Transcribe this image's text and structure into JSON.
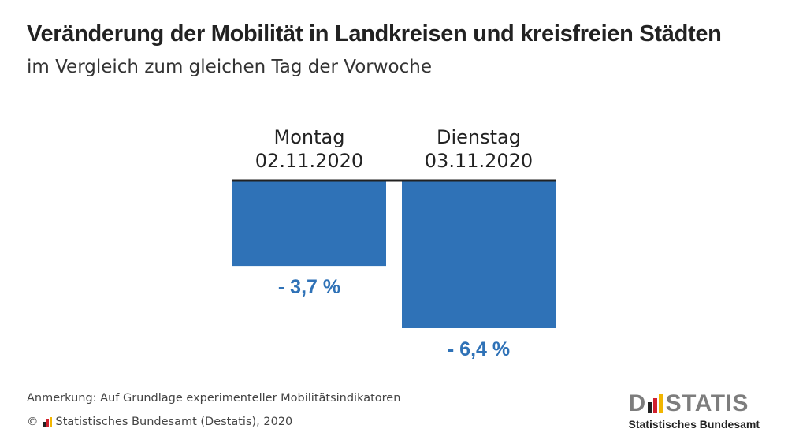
{
  "header": {
    "title": "Veränderung der Mobilität in Landkreisen und kreisfreien Städten",
    "subtitle": "im Vergleich zum gleichen Tag der Vorwoche"
  },
  "chart_data": {
    "type": "bar",
    "categories": [
      {
        "day": "Montag",
        "date": "02.11.2020"
      },
      {
        "day": "Dienstag",
        "date": "03.11.2020"
      }
    ],
    "values": [
      -3.7,
      -6.4
    ],
    "value_labels": [
      "- 3,7 %",
      "- 6,4 %"
    ],
    "title": "Veränderung der Mobilität in Landkreisen und kreisfreien Städten",
    "subtitle": "im Vergleich zum gleichen Tag der Vorwoche",
    "xlabel": "",
    "ylabel": "",
    "ylim": [
      -6.4,
      0
    ],
    "grid": false,
    "colors": {
      "bar": "#2f72b7",
      "label": "#2f72b7",
      "baseline": "#222222"
    }
  },
  "footer": {
    "note": "Anmerkung: Auf Grundlage experimenteller Mobilitätsindikatoren",
    "copyright_symbol": "©",
    "copyright_text": "Statistisches Bundesamt (Destatis), 2020"
  },
  "logo": {
    "word_left": "D",
    "word_right": "STATIS",
    "subtitle": "Statistisches Bundesamt",
    "bar_colors": [
      "#222222",
      "#d0202e",
      "#f2b600"
    ]
  }
}
